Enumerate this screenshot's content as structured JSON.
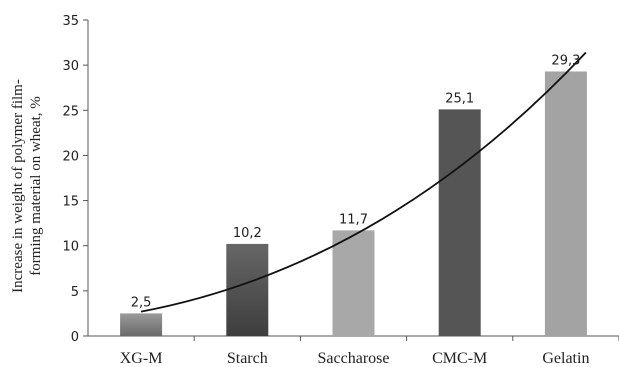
{
  "chart_data": {
    "type": "bar",
    "title": "",
    "xlabel": "",
    "ylabel_lines": [
      "Increase in weight of polymer film-",
      "forming material on wheat, %"
    ],
    "categories": [
      "XG-M",
      "Starch",
      "Saccharose",
      "CMC-M",
      "Gelatin"
    ],
    "values": [
      2.5,
      10.2,
      11.7,
      25.1,
      29.3
    ],
    "data_labels": [
      "2,5",
      "10,2",
      "11,7",
      "25,1",
      "29,3"
    ],
    "ylim": [
      0,
      35
    ],
    "yticks": [
      0,
      5,
      10,
      15,
      20,
      25,
      30,
      35
    ],
    "grid": false,
    "legend": "none",
    "trendline": {
      "type": "polynomial",
      "y_start": 2.7,
      "y_end": 31.4
    },
    "bar_colors": [
      "#8a8a8a",
      "#5e5e5e",
      "#a8a8a8",
      "#555555",
      "#a3a3a3"
    ]
  }
}
